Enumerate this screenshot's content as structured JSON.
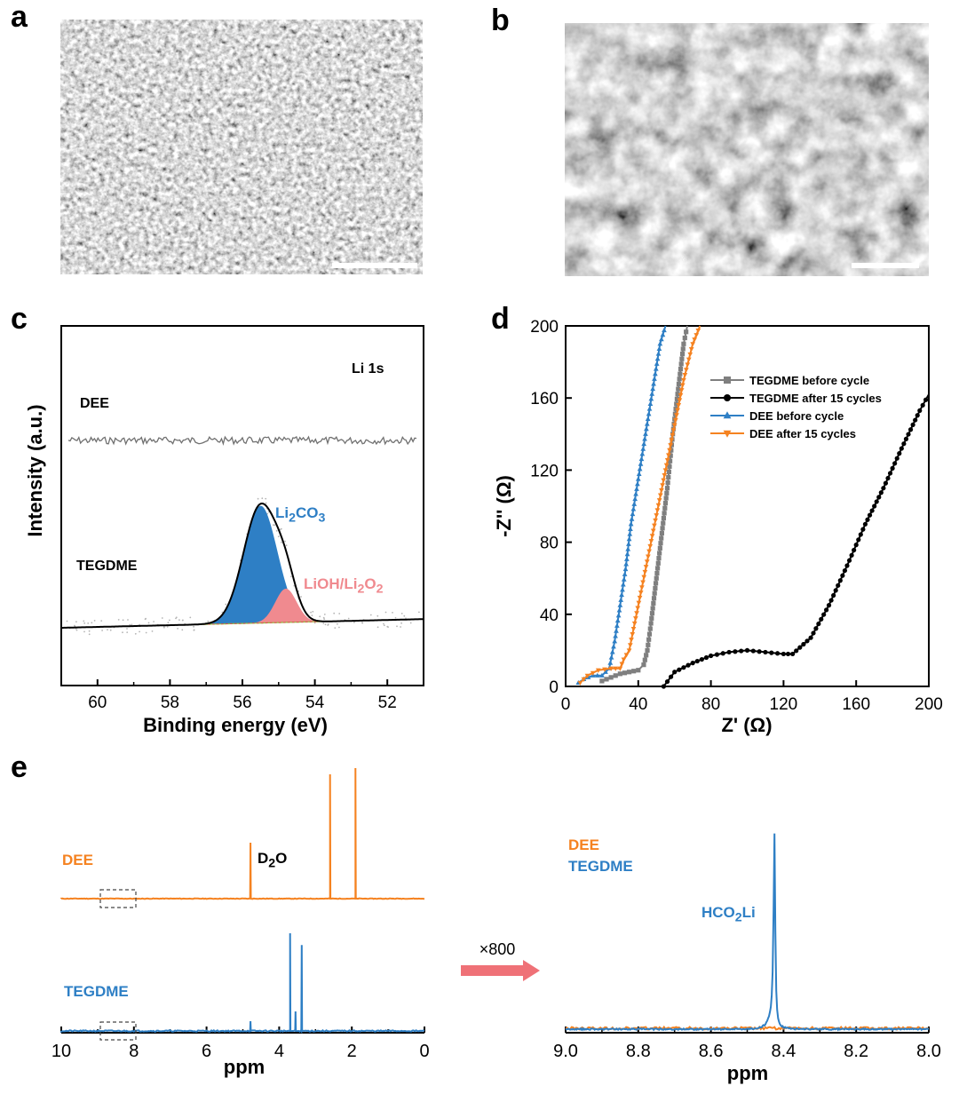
{
  "panels": {
    "a": "a",
    "b": "b",
    "c": "c",
    "d": "d",
    "e": "e"
  },
  "colors": {
    "blue": "#2e7fc5",
    "orange": "#f58220",
    "pink": "#f08a8f",
    "gray": "#7f7f7f",
    "black": "#000000",
    "arrow": "#ef7177"
  },
  "chart_data": [
    {
      "id": "c",
      "type": "line",
      "xlabel": "Binding energy (eV)",
      "ylabel": "Intensity (a.u.)",
      "xlim": [
        61,
        51
      ],
      "xticks": [
        60,
        58,
        56,
        54,
        52
      ],
      "corner_label": "Li 1s",
      "traces": [
        {
          "label": "DEE"
        },
        {
          "label": "TEGDME"
        }
      ],
      "peaks": [
        {
          "label_html": "Li<sub>2</sub>CO<sub>3</sub>",
          "center": 55.5,
          "color": "#2e7fc5"
        },
        {
          "label_html": "LiOH/Li<sub>2</sub>O<sub>2</sub>",
          "center": 54.8,
          "color": "#f08a8f"
        }
      ]
    },
    {
      "id": "d",
      "type": "scatter",
      "xlabel": "Z' (Ω)",
      "ylabel": "-Z'' (Ω)",
      "xlim": [
        0,
        200
      ],
      "ylim": [
        0,
        200
      ],
      "xticks": [
        0,
        40,
        80,
        120,
        160,
        200
      ],
      "yticks": [
        0,
        40,
        80,
        120,
        160,
        200
      ],
      "legend_position": "top-right",
      "series": [
        {
          "name": "TEGDME before cycle",
          "color": "#7f7f7f",
          "marker": "square",
          "x": [
            20,
            25,
            30,
            35,
            40,
            43,
            45,
            47,
            50,
            53,
            56,
            59,
            62,
            65,
            67
          ],
          "y": [
            3,
            5,
            7,
            8,
            9,
            12,
            20,
            35,
            60,
            85,
            110,
            140,
            165,
            190,
            200
          ]
        },
        {
          "name": "TEGDME after 15 cycles",
          "color": "#000000",
          "marker": "circle",
          "x": [
            54,
            60,
            70,
            80,
            90,
            100,
            110,
            120,
            125,
            135,
            145,
            155,
            165,
            175,
            185,
            195,
            200
          ],
          "y": [
            0,
            8,
            13,
            17,
            19,
            20,
            19,
            18,
            18,
            27,
            45,
            67,
            90,
            110,
            132,
            153,
            162
          ]
        },
        {
          "name": "DEE before cycle",
          "color": "#2e7fc5",
          "marker": "triangle-up",
          "x": [
            7,
            10,
            15,
            20,
            24,
            27,
            30,
            33,
            36,
            40,
            44,
            48,
            52,
            55
          ],
          "y": [
            2,
            4,
            6,
            6,
            10,
            25,
            45,
            65,
            90,
            115,
            140,
            165,
            190,
            200
          ]
        },
        {
          "name": "DEE after 15 cycles",
          "color": "#f58220",
          "marker": "triangle-down",
          "x": [
            8,
            12,
            18,
            25,
            30,
            32,
            35,
            38,
            42,
            46,
            50,
            55,
            60,
            65,
            70,
            74
          ],
          "y": [
            2,
            6,
            9,
            10,
            10,
            15,
            20,
            35,
            55,
            75,
            95,
            120,
            145,
            170,
            190,
            200
          ]
        }
      ]
    },
    {
      "id": "e-left",
      "type": "line",
      "xlabel": "ppm",
      "xlim": [
        10,
        0
      ],
      "xticks": [
        10,
        8,
        6,
        4,
        2,
        0
      ],
      "series": [
        {
          "name": "DEE",
          "color": "#f58220",
          "peaks": [
            {
              "ppm": 4.79,
              "height": 0.45
            },
            {
              "ppm": 2.6,
              "height": 1.0
            },
            {
              "ppm": 1.9,
              "height": 1.05
            }
          ]
        },
        {
          "name": "TEGDME",
          "color": "#2e7fc5",
          "peaks": [
            {
              "ppm": 4.79,
              "height": 0.1
            },
            {
              "ppm": 3.7,
              "height": 1.0
            },
            {
              "ppm": 3.55,
              "height": 0.2
            },
            {
              "ppm": 3.38,
              "height": 0.88
            }
          ]
        }
      ],
      "annotations": [
        {
          "text_html": "D<sub>2</sub>O"
        }
      ]
    },
    {
      "id": "e-right",
      "type": "line",
      "xlabel": "ppm",
      "xlim": [
        9.0,
        8.0
      ],
      "xticks": [
        "9.0",
        "8.8",
        "8.6",
        "8.4",
        "8.2",
        "8.0"
      ],
      "magnification": "×800",
      "series": [
        {
          "name": "DEE",
          "color": "#f58220",
          "peaks": []
        },
        {
          "name": "TEGDME",
          "color": "#2e7fc5",
          "peaks": [
            {
              "ppm": 8.425,
              "height": 1.0
            }
          ]
        }
      ],
      "annotations": [
        {
          "text_html": "HCO<sub>2</sub>Li"
        }
      ]
    }
  ]
}
